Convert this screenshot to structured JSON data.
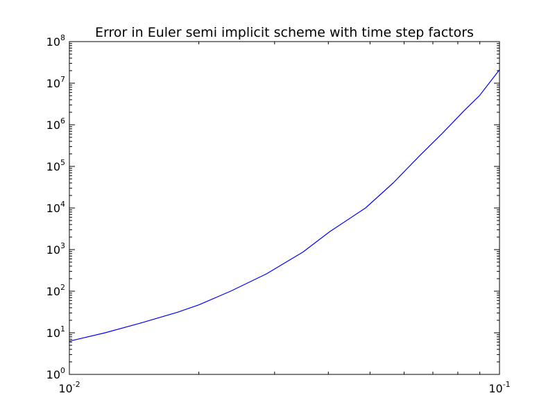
{
  "chart_data": {
    "type": "line",
    "title": "Error in Euler semi implicit scheme with time step factors",
    "xlabel": "",
    "ylabel": "",
    "xscale": "log",
    "yscale": "log",
    "xlim": [
      0.01,
      0.1
    ],
    "ylim": [
      1,
      100000000
    ],
    "grid": false,
    "x_ticks": [
      {
        "base": "10",
        "exp": "-2"
      },
      {
        "base": "10",
        "exp": "-1"
      }
    ],
    "y_ticks": [
      {
        "base": "10",
        "exp": "0"
      },
      {
        "base": "10",
        "exp": "1"
      },
      {
        "base": "10",
        "exp": "2"
      },
      {
        "base": "10",
        "exp": "3"
      },
      {
        "base": "10",
        "exp": "4"
      },
      {
        "base": "10",
        "exp": "5"
      },
      {
        "base": "10",
        "exp": "6"
      },
      {
        "base": "10",
        "exp": "7"
      },
      {
        "base": "10",
        "exp": "8"
      }
    ],
    "series": [
      {
        "color": "#0000ff",
        "x": [
          0.01,
          0.0121,
          0.0146,
          0.0178,
          0.02,
          0.0237,
          0.0287,
          0.0349,
          0.0403,
          0.0488,
          0.0566,
          0.0652,
          0.0736,
          0.0828,
          0.0898,
          0.1
        ],
        "y": [
          6.3,
          10,
          17,
          31,
          47,
          100,
          260,
          870,
          2700,
          10000,
          40000,
          180000,
          620000,
          2200000,
          5000000,
          21000000
        ]
      }
    ]
  }
}
